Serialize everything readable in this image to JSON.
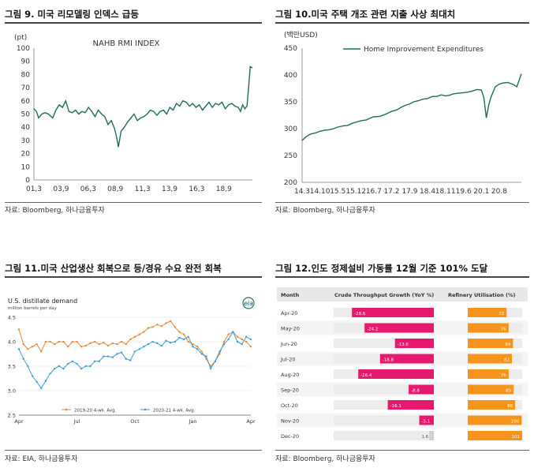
{
  "panels": {
    "fig9": {
      "title": "그림 9.  미국 리모델링 인덱스 급등",
      "source": "자료: Bloomberg, 하나금융투자"
    },
    "fig10": {
      "title": "그림 10.미국 주택 개조 관련 지출 사상 최대치",
      "source": "자료: Bloomberg, 하나금융투자"
    },
    "fig11": {
      "title": "그림 11.미국 산업생산 회복으로 등/경유 수요 완전 회복",
      "source": "자료: EIA, 하나금융투자"
    },
    "fig12": {
      "title": "그림 12.인도 정제설비 가동률 12월 기준 101% 도달",
      "source": "자료: Bloomberg, 하나금융투자"
    }
  },
  "colors": {
    "teal": "#1f6e5c",
    "orange": "#e8883a",
    "blue": "#3a9fd6",
    "pink": "#e6196e",
    "orange2": "#f7941d"
  },
  "chart_data": [
    {
      "id": "fig9",
      "type": "line",
      "title": "NAHB RMI INDEX",
      "unit_label": "(pt)",
      "ylim": [
        0,
        100
      ],
      "yticks": [
        0,
        10,
        20,
        30,
        40,
        50,
        60,
        70,
        80,
        90,
        100
      ],
      "xlabels": [
        "01,3",
        "03,9",
        "06,3",
        "08,9",
        "11,3",
        "13,9",
        "16,3",
        "18,9"
      ],
      "xlim": [
        2001.17,
        2021.3
      ],
      "xtick_positions": [
        2001.17,
        2003.67,
        2006.17,
        2008.67,
        2011.17,
        2013.67,
        2016.17,
        2018.67
      ],
      "series": [
        {
          "name": "NAHB RMI INDEX",
          "x": [
            2001.17,
            2001.4,
            2001.6,
            2001.9,
            2002.2,
            2002.5,
            2002.9,
            2003.2,
            2003.5,
            2003.8,
            2004.1,
            2004.4,
            2004.7,
            2005.0,
            2005.3,
            2005.6,
            2005.9,
            2006.2,
            2006.5,
            2006.8,
            2007.1,
            2007.4,
            2007.7,
            2008.0,
            2008.3,
            2008.6,
            2008.8,
            2008.95,
            2009.2,
            2009.5,
            2009.8,
            2010.1,
            2010.4,
            2010.7,
            2011.0,
            2011.3,
            2011.6,
            2011.9,
            2012.2,
            2012.5,
            2012.8,
            2013.1,
            2013.4,
            2013.7,
            2014.0,
            2014.3,
            2014.6,
            2014.9,
            2015.2,
            2015.5,
            2015.8,
            2016.1,
            2016.4,
            2016.7,
            2017.0,
            2017.3,
            2017.6,
            2017.9,
            2018.2,
            2018.5,
            2018.8,
            2019.1,
            2019.4,
            2019.7,
            2020.0,
            2020.2,
            2020.4,
            2020.6,
            2020.8,
            2020.95,
            2021.1,
            2021.3
          ],
          "y": [
            54,
            52,
            47,
            50,
            51,
            50,
            47,
            53,
            57,
            55,
            60,
            52,
            51,
            53,
            50,
            52,
            51,
            55,
            52,
            48,
            53,
            50,
            48,
            42,
            45,
            39,
            32,
            25,
            37,
            40,
            44,
            47,
            50,
            45,
            47,
            48,
            50,
            53,
            52,
            49,
            52,
            53,
            50,
            55,
            53,
            58,
            56,
            60,
            59,
            56,
            58,
            55,
            57,
            53,
            56,
            59,
            55,
            58,
            57,
            59,
            54,
            57,
            58,
            56,
            55,
            52,
            57,
            54,
            56,
            70,
            86,
            85
          ]
        }
      ]
    },
    {
      "id": "fig10",
      "type": "line",
      "unit_label": "(백만USD)",
      "ylim": [
        200,
        450
      ],
      "yticks": [
        200,
        250,
        300,
        350,
        400,
        450
      ],
      "xlabels": [
        "14.3",
        "14.10",
        "15.5",
        "15.12",
        "16.7",
        "17.2",
        "17.9",
        "18.4",
        "18.11",
        "19.6",
        "20.1",
        "20.8"
      ],
      "xlim": [
        2014.17,
        2021.3
      ],
      "xtick_positions": [
        2014.17,
        2014.75,
        2015.33,
        2015.92,
        2016.5,
        2017.08,
        2017.67,
        2018.25,
        2018.83,
        2019.42,
        2020.0,
        2020.58
      ],
      "series": [
        {
          "name": "Home Improvement Expenditures",
          "x": [
            2014.17,
            2014.3,
            2014.45,
            2014.6,
            2014.75,
            2014.9,
            2015.05,
            2015.2,
            2015.33,
            2015.5,
            2015.65,
            2015.8,
            2015.92,
            2016.1,
            2016.25,
            2016.4,
            2016.5,
            2016.7,
            2016.85,
            2017.0,
            2017.08,
            2017.25,
            2017.4,
            2017.55,
            2017.67,
            2017.8,
            2017.95,
            2018.1,
            2018.25,
            2018.4,
            2018.55,
            2018.7,
            2018.83,
            2018.95,
            2019.1,
            2019.25,
            2019.42,
            2019.55,
            2019.7,
            2019.85,
            2020.0,
            2020.08,
            2020.16,
            2020.24,
            2020.32,
            2020.45,
            2020.58,
            2020.7,
            2020.85,
            2020.95,
            2021.05,
            2021.15,
            2021.3
          ],
          "y": [
            278,
            285,
            290,
            292,
            295,
            297,
            298,
            300,
            303,
            305,
            306,
            310,
            312,
            315,
            316,
            320,
            322,
            323,
            326,
            330,
            332,
            335,
            340,
            344,
            346,
            350,
            352,
            355,
            356,
            360,
            360,
            363,
            361,
            362,
            365,
            366,
            367,
            368,
            370,
            373,
            372,
            358,
            320,
            345,
            360,
            378,
            383,
            385,
            386,
            384,
            382,
            378,
            402
          ]
        }
      ]
    },
    {
      "id": "fig11",
      "type": "line",
      "title": "U.S. distillate demand",
      "subtitle": "million barrels per day",
      "logo": "eia",
      "ylim": [
        2.5,
        4.5
      ],
      "yticks": [
        "2.5",
        "3.0",
        "3.5",
        "4.0",
        "4.5"
      ],
      "ytick_values": [
        2.5,
        3.0,
        3.5,
        4.0,
        4.5
      ],
      "xlabels": [
        "Apr",
        "Jul",
        "Oct",
        "Jan",
        "Apr"
      ],
      "xtick_positions": [
        0,
        13,
        26,
        39,
        52
      ],
      "xlim": [
        0,
        52
      ],
      "series": [
        {
          "name": "2019-20  4-wk. Avg.",
          "y": [
            4.25,
            3.95,
            3.85,
            3.9,
            3.95,
            3.8,
            4.0,
            4.0,
            3.95,
            4.0,
            4.0,
            3.9,
            4.0,
            4.0,
            3.9,
            3.92,
            3.97,
            4.0,
            3.95,
            3.98,
            3.92,
            3.97,
            3.95,
            4.0,
            3.95,
            4.05,
            4.1,
            4.15,
            4.2,
            4.28,
            4.3,
            4.35,
            4.32,
            4.38,
            4.42,
            4.3,
            4.2,
            4.15,
            4.0,
            3.95,
            3.9,
            3.8,
            3.65,
            3.5,
            3.6,
            3.75,
            4.0,
            4.15,
            4.2,
            4.1,
            4.05,
            4.0,
            3.9
          ]
        },
        {
          "name": "2020-21  4-wk. Avg.",
          "y": [
            3.85,
            3.65,
            3.5,
            3.3,
            3.18,
            3.05,
            3.2,
            3.35,
            3.45,
            3.5,
            3.45,
            3.55,
            3.6,
            3.55,
            3.45,
            3.5,
            3.5,
            3.6,
            3.6,
            3.7,
            3.7,
            3.68,
            3.75,
            3.78,
            3.65,
            3.62,
            3.8,
            3.85,
            3.9,
            3.95,
            4.0,
            3.97,
            3.92,
            4.02,
            3.98,
            4.0,
            4.08,
            4.05,
            4.1,
            3.9,
            3.85,
            3.75,
            3.7,
            3.45,
            3.6,
            3.8,
            3.95,
            4.05,
            4.2,
            4.0,
            3.95,
            4.1,
            4.05
          ]
        }
      ],
      "legend": [
        "2019-20  4-wk. Avg.",
        "2020-21  4-wk. Avg."
      ]
    },
    {
      "id": "fig12",
      "type": "table",
      "columns": [
        "Month",
        "Crude Throughput Growth (YoY %)",
        "Refinery Utilisation (%)"
      ],
      "rows": [
        {
          "month": "Apr-20",
          "growth": -28.6,
          "growth_label": "-28.6",
          "util": 72,
          "util_label": "72"
        },
        {
          "month": "May-20",
          "growth": -24.2,
          "growth_label": "-24.2",
          "util": 76,
          "util_label": "76"
        },
        {
          "month": "Jun-20",
          "growth": -13.6,
          "growth_label": "-13.6",
          "util": 84,
          "util_label": "84"
        },
        {
          "month": "Jul-20",
          "growth": -18.8,
          "growth_label": "-18.8",
          "util": 82,
          "util_label": "82"
        },
        {
          "month": "Aug-20",
          "growth": -26.4,
          "growth_label": "-26.4",
          "util": 76,
          "util_label": "76"
        },
        {
          "month": "Sep-20",
          "growth": -8.8,
          "growth_label": "-8.8",
          "util": 85,
          "util_label": "85"
        },
        {
          "month": "Oct-20",
          "growth": -16.1,
          "growth_label": "-16.1",
          "util": 88,
          "util_label": "88"
        },
        {
          "month": "Nov-20",
          "growth": -5.1,
          "growth_label": "-5.1",
          "util": 100,
          "util_label": "100"
        },
        {
          "month": "Dec-20",
          "growth": 1.6,
          "growth_label": "1.6",
          "util": 101,
          "util_label": "101"
        }
      ],
      "growth_range": [
        -35,
        0
      ],
      "util_range": [
        0,
        101
      ]
    }
  ]
}
